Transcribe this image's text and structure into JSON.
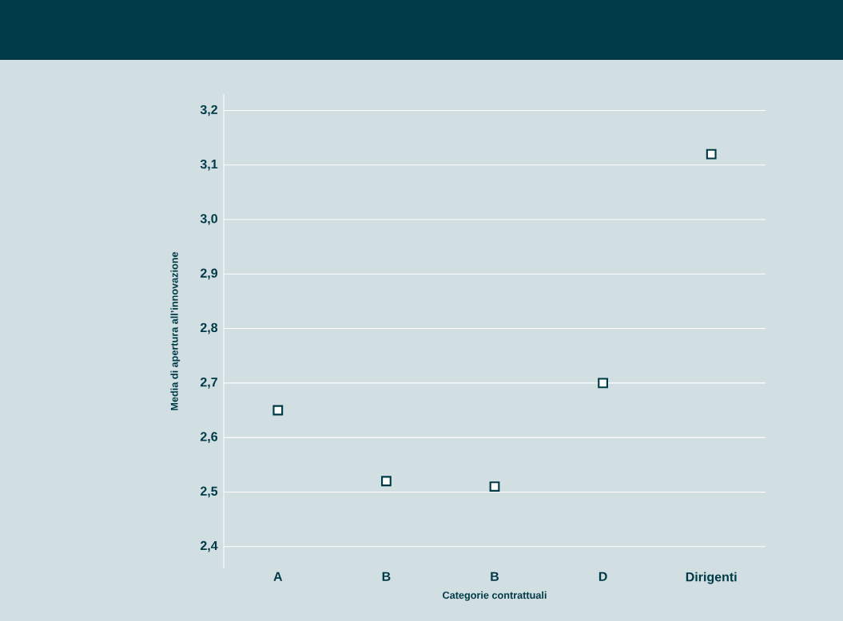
{
  "chart_data": {
    "type": "scatter",
    "xlabel": "Categorie contrattuali",
    "ylabel": "Media di apertura all’innovazione",
    "categories": [
      "A",
      "B",
      "B",
      "D",
      "Dirigenti"
    ],
    "values": [
      2.65,
      2.52,
      2.51,
      2.7,
      3.12
    ],
    "color": "#003a47",
    "marker": "square",
    "grid": "y",
    "ylim": [
      2.36,
      3.23
    ],
    "yticks": [
      {
        "value": 2.4,
        "label": "2,4"
      },
      {
        "value": 2.5,
        "label": "2,5"
      },
      {
        "value": 2.6,
        "label": "2,6"
      },
      {
        "value": 2.7,
        "label": "2,7"
      },
      {
        "value": 2.8,
        "label": "2,8"
      },
      {
        "value": 2.9,
        "label": "2,9"
      },
      {
        "value": 3.0,
        "label": "3,0"
      },
      {
        "value": 3.1,
        "label": "3,1"
      },
      {
        "value": 3.2,
        "label": "3,2"
      }
    ]
  }
}
